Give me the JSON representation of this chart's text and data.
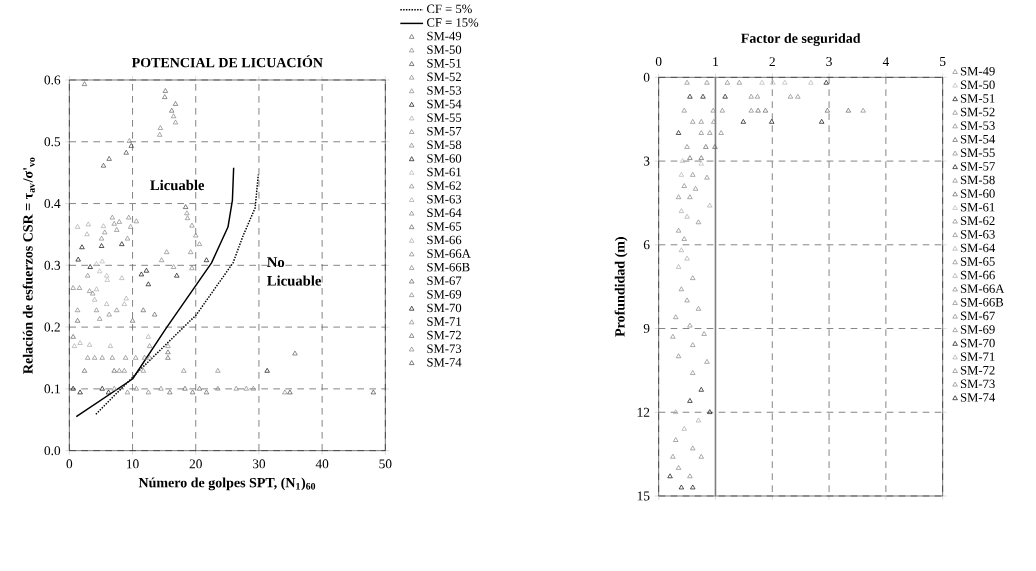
{
  "chart_data": [
    {
      "type": "scatter",
      "title": "POTENCIAL DE LICUACIÓN",
      "xlabel": "Número de golpes SPT,  (N$_{1}$)$_{60}$",
      "ylabel": "Relación de esfuerzos CSR = τ$_{av}$/σ'$_{vo}$",
      "xlim": [
        0,
        50
      ],
      "xticks": [
        0,
        10,
        20,
        30,
        40,
        50
      ],
      "ylim": [
        0,
        0.6
      ],
      "yticks": [
        {
          "value": 0,
          "label": "0.0"
        },
        {
          "value": 0.1,
          "label": "0.1"
        },
        {
          "value": 0.2,
          "label": "0.2"
        },
        {
          "value": 0.3,
          "label": "0.3"
        },
        {
          "value": 0.4,
          "label": "0.4"
        },
        {
          "value": 0.5,
          "label": "0.5"
        },
        {
          "value": 0.6,
          "label": "0.6"
        }
      ],
      "grid": true,
      "legend": "right",
      "marker": "triangle",
      "annotations": [
        "Licuable",
        "No Licuable"
      ],
      "series": [
        {
          "name": "CF = 5%",
          "type": "line",
          "line_style": "dotted",
          "marker": "none",
          "color": "#000000",
          "x": [
            4.2,
            11.1,
            20.1,
            25.9,
            27.5,
            29.4,
            29.9
          ],
          "values": [
            0.059,
            0.13,
            0.22,
            0.304,
            0.348,
            0.393,
            0.447
          ]
        },
        {
          "name": "CF = 15%",
          "type": "line",
          "line_style": "solid",
          "marker": "none",
          "color": "#000000",
          "x": [
            1.1,
            10,
            15.3,
            22.5,
            25.1,
            25.8,
            26
          ],
          "values": [
            0.055,
            0.116,
            0.198,
            0.304,
            0.362,
            0.405,
            0.458
          ]
        },
        {
          "name": "SM-49",
          "color": "#5a5a5a",
          "x": [
            2.4,
            15.2,
            15.1,
            16.8,
            16.2
          ],
          "values": [
            0.593,
            0.582,
            0.572,
            0.561,
            0.55
          ]
        },
        {
          "name": "SM-50",
          "color": "#808080",
          "x": [
            16.5,
            16.8,
            14.4,
            14.3,
            9.5
          ],
          "values": [
            0.541,
            0.531,
            0.522,
            0.511,
            0.501
          ]
        },
        {
          "name": "SM-51",
          "color": "#3c3c3c",
          "x": [
            9.8,
            9,
            6.3,
            5.4,
            18.4
          ],
          "values": [
            0.493,
            0.482,
            0.472,
            0.461,
            0.394
          ]
        },
        {
          "name": "SM-52",
          "color": "#808080",
          "x": [
            18.6,
            18.7,
            19.4,
            20,
            20.6
          ],
          "values": [
            0.384,
            0.376,
            0.364,
            0.348,
            0.334
          ]
        },
        {
          "name": "SM-53",
          "color": "#808080",
          "x": [
            19.2,
            15.4,
            14.6,
            16.5,
            19.4
          ],
          "values": [
            0.321,
            0.321,
            0.308,
            0.297,
            0.295
          ]
        },
        {
          "name": "SM-54",
          "color": "#000000",
          "x": [
            17,
            21.7,
            12.2,
            11.4,
            12.5
          ],
          "values": [
            0.283,
            0.308,
            0.291,
            0.285,
            0.269
          ]
        },
        {
          "name": "SM-55",
          "color": "#a6a6a6",
          "x": [
            8.3,
            1.3,
            3,
            2.8,
            5.4
          ],
          "values": [
            0.279,
            0.362,
            0.366,
            0.35,
            0.363
          ]
        },
        {
          "name": "SM-57",
          "color": "#808080",
          "x": [
            5.6,
            5.1,
            6.8,
            7.1,
            7.9
          ],
          "values": [
            0.353,
            0.343,
            0.377,
            0.367,
            0.37
          ]
        },
        {
          "name": "SM-58",
          "color": "#808080",
          "x": [
            7.5,
            9.4,
            9.7,
            10.6,
            9.2
          ],
          "values": [
            0.357,
            0.377,
            0.362,
            0.371,
            0.343
          ]
        },
        {
          "name": "SM-60",
          "color": "#000000",
          "x": [
            8.3,
            5.1,
            2,
            1.4,
            3.3
          ],
          "values": [
            0.334,
            0.331,
            0.329,
            0.309,
            0.297
          ]
        },
        {
          "name": "SM-61",
          "color": "#b4b4b4",
          "x": [
            4.3,
            5.2,
            4.8,
            5.9,
            6
          ],
          "values": [
            0.302,
            0.306,
            0.29,
            0.283,
            0.276
          ]
        },
        {
          "name": "SM-62",
          "color": "#808080",
          "x": [
            2.9,
            0.6,
            1.6,
            3.2,
            3.7
          ],
          "values": [
            0.283,
            0.263,
            0.263,
            0.258,
            0.254
          ]
        },
        {
          "name": "SM-63",
          "color": "#a6a6a6",
          "x": [
            4.3,
            4,
            5.9,
            8.7,
            9
          ],
          "values": [
            0.261,
            0.244,
            0.237,
            0.237,
            0.246
          ]
        },
        {
          "name": "SM-64",
          "color": "#808080",
          "x": [
            7.5,
            1.3,
            4.3,
            6.3,
            4.8
          ],
          "values": [
            0.227,
            0.227,
            0.227,
            0.22,
            0.213
          ]
        },
        {
          "name": "SM-65",
          "color": "#5a5a5a",
          "x": [
            1.3,
            10,
            11.7,
            13.5,
            0.6
          ],
          "values": [
            0.21,
            0.21,
            0.227,
            0.22,
            0.184
          ]
        },
        {
          "name": "SM-66",
          "color": "#a6a6a6",
          "x": [
            1.7,
            3.2,
            0.8,
            6.5,
            12.5
          ],
          "values": [
            0.174,
            0.171,
            0.169,
            0.169,
            0.184
          ]
        },
        {
          "name": "SM-66A",
          "color": "#808080",
          "x": [
            12.7,
            15.6,
            2.9,
            4,
            5.2
          ],
          "values": [
            0.169,
            0.169,
            0.15,
            0.15,
            0.15
          ]
        },
        {
          "name": "SM-66B",
          "color": "#808080",
          "x": [
            6.8,
            8.9,
            10.5,
            11.9,
            12.7
          ],
          "values": [
            0.15,
            0.15,
            0.15,
            0.15,
            0.15
          ]
        },
        {
          "name": "SM-67",
          "color": "#5a5a5a",
          "x": [
            15.6,
            15.6,
            35.7,
            2.4,
            7.1
          ],
          "values": [
            0.15,
            0.159,
            0.157,
            0.129,
            0.129
          ]
        },
        {
          "name": "SM-69",
          "color": "#808080",
          "x": [
            7.9,
            8.7,
            11.7,
            18.1,
            23.5
          ],
          "values": [
            0.129,
            0.129,
            0.129,
            0.129,
            0.129
          ]
        },
        {
          "name": "SM-70",
          "color": "#000000",
          "x": [
            31.3,
            0.6,
            1.7,
            5.2,
            6.2
          ],
          "values": [
            0.129,
            0.1,
            0.094,
            0.1,
            0.094
          ]
        },
        {
          "name": "SM-71",
          "color": "#808080",
          "x": [
            7.1,
            9.2,
            10.6,
            12.5,
            14.5
          ],
          "values": [
            0.1,
            0.094,
            0.1,
            0.094,
            0.1
          ]
        },
        {
          "name": "SM-72",
          "color": "#5a5a5a",
          "x": [
            15.9,
            18.3,
            19.5,
            20.6,
            21.7
          ],
          "values": [
            0.094,
            0.1,
            0.094,
            0.1,
            0.094
          ]
        },
        {
          "name": "SM-73",
          "color": "#808080",
          "x": [
            23.5,
            26.4,
            28,
            29.1,
            34.1
          ],
          "values": [
            0.1,
            0.1,
            0.1,
            0.1,
            0.094
          ]
        },
        {
          "name": "SM-74",
          "color": "#3c3c3c",
          "x": [
            34.9,
            48.1
          ],
          "values": [
            0.094,
            0.094
          ]
        }
      ]
    },
    {
      "type": "scatter",
      "title": "Factor de seguridad",
      "ylabel": "Profundidad (m)",
      "xlim": [
        0,
        5
      ],
      "xticks": [
        0,
        1,
        2,
        3,
        4,
        5
      ],
      "ylim": [
        15,
        0
      ],
      "yticks": [
        0,
        3,
        6,
        9,
        12,
        15
      ],
      "grid": true,
      "legend": "right",
      "marker": "triangle",
      "ref_lines": [
        {
          "axis": "x",
          "value": 1,
          "color": "#808080"
        }
      ],
      "series": [
        {
          "name": "SM-49",
          "color": "#808080",
          "x": [
            0.5,
            0.85,
            1.21,
            1.42
          ],
          "values": [
            0.2,
            0.2,
            0.2,
            0.2
          ]
        },
        {
          "name": "SM-50",
          "color": "#b4b4b4",
          "x": [
            1.82,
            2.01,
            2.22,
            2.68
          ],
          "values": [
            0.2,
            0.2,
            0.2,
            0.2
          ]
        },
        {
          "name": "SM-51",
          "color": "#000000",
          "x": [
            2.95,
            0.55,
            0.78,
            1.17
          ],
          "values": [
            0.2,
            0.7,
            0.7,
            0.7
          ]
        },
        {
          "name": "SM-52",
          "color": "#808080",
          "x": [
            1.63,
            1.74,
            2.32,
            2.45
          ],
          "values": [
            0.7,
            0.7,
            0.7,
            0.7
          ]
        },
        {
          "name": "SM-53",
          "color": "#808080",
          "x": [
            0.45,
            0.96,
            1.12,
            1.63
          ],
          "values": [
            1.2,
            1.2,
            1.2,
            1.2
          ]
        },
        {
          "name": "SM-54",
          "color": "#5a5a5a",
          "x": [
            1.75,
            1.88,
            2.97,
            3.34
          ],
          "values": [
            1.2,
            1.2,
            1.2,
            1.2
          ]
        },
        {
          "name": "SM-55",
          "color": "#808080",
          "x": [
            3.6,
            0.6,
            0.75,
            0.97
          ],
          "values": [
            1.2,
            1.6,
            1.6,
            1.6
          ]
        },
        {
          "name": "SM-57",
          "color": "#000000",
          "x": [
            1.49,
            1.99,
            2.87,
            0.35
          ],
          "values": [
            1.6,
            1.6,
            1.6,
            2.0
          ]
        },
        {
          "name": "SM-58",
          "color": "#808080",
          "x": [
            0.75,
            0.9,
            1.1,
            0.5
          ],
          "values": [
            2.0,
            2.0,
            2.0,
            2.5
          ]
        },
        {
          "name": "SM-60",
          "color": "#5a5a5a",
          "x": [
            0.83,
            0.99,
            0.55,
            0.75
          ],
          "values": [
            2.5,
            2.5,
            2.9,
            2.9
          ]
        },
        {
          "name": "SM-61",
          "color": "#b4b4b4",
          "x": [
            0.42,
            0.75,
            0.4
          ],
          "values": [
            3.0,
            3.1,
            3.5
          ]
        },
        {
          "name": "SM-62",
          "color": "#808080",
          "x": [
            0.6,
            0.85,
            0.45
          ],
          "values": [
            3.5,
            3.6,
            3.9
          ]
        },
        {
          "name": "SM-63",
          "color": "#808080",
          "x": [
            0.65,
            0.35,
            0.55
          ],
          "values": [
            4.0,
            4.3,
            4.3
          ]
        },
        {
          "name": "SM-64",
          "color": "#a6a6a6",
          "x": [
            0.9,
            0.4,
            0.5
          ],
          "values": [
            4.6,
            4.8,
            5.0
          ]
        },
        {
          "name": "SM-65",
          "color": "#808080",
          "x": [
            0.7,
            0.35,
            0.45
          ],
          "values": [
            5.2,
            5.5,
            5.8
          ]
        },
        {
          "name": "SM-66",
          "color": "#a6a6a6",
          "x": [
            0.4,
            0.5,
            0.35
          ],
          "values": [
            6.2,
            6.5,
            6.8
          ]
        },
        {
          "name": "SM-66A",
          "color": "#808080",
          "x": [
            0.6,
            0.4,
            0.5
          ],
          "values": [
            7.2,
            7.6,
            8.0
          ]
        },
        {
          "name": "SM-66B",
          "color": "#808080",
          "x": [
            0.7,
            0.3,
            0.55
          ],
          "values": [
            8.3,
            8.6,
            8.9
          ]
        },
        {
          "name": "SM-67",
          "color": "#808080",
          "x": [
            0.8,
            0.25,
            0.6
          ],
          "values": [
            9.2,
            9.3,
            9.6
          ]
        },
        {
          "name": "SM-69",
          "color": "#808080",
          "x": [
            0.35,
            0.85,
            0.6
          ],
          "values": [
            10.0,
            10.2,
            10.6
          ]
        },
        {
          "name": "SM-70",
          "color": "#000000",
          "x": [
            0.75,
            0.55,
            0.9
          ],
          "values": [
            11.2,
            11.6,
            12.0
          ]
        },
        {
          "name": "SM-71",
          "color": "#a6a6a6",
          "x": [
            0.3,
            0.7,
            0.45
          ],
          "values": [
            12.0,
            12.3,
            12.6
          ]
        },
        {
          "name": "SM-72",
          "color": "#808080",
          "x": [
            0.3,
            0.6,
            0.25
          ],
          "values": [
            13.0,
            13.3,
            13.6
          ]
        },
        {
          "name": "SM-73",
          "color": "#808080",
          "x": [
            0.75,
            0.35,
            0.55
          ],
          "values": [
            13.6,
            14.0,
            14.3
          ]
        },
        {
          "name": "SM-74",
          "color": "#000000",
          "x": [
            0.2,
            0.4,
            0.6
          ],
          "values": [
            14.3,
            14.7,
            14.7
          ]
        }
      ]
    }
  ]
}
